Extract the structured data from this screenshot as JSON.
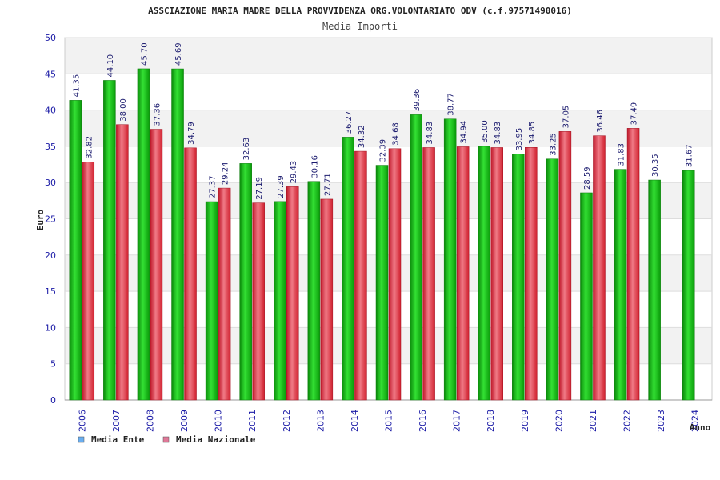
{
  "chart_data": {
    "type": "bar",
    "title": "ASSCIAZIONE MARIA MADRE DELLA PROVVIDENZA ORG.VOLONTARIATO ODV (c.f.97571490016)",
    "subtitle": "Media Importi",
    "xlabel": "Anno",
    "ylabel": "Euro",
    "ylim": [
      0,
      50
    ],
    "yticks": [
      0,
      5,
      10,
      15,
      20,
      25,
      30,
      35,
      40,
      45,
      50
    ],
    "grid": true,
    "legend_position": "bottom-left",
    "categories": [
      "2006",
      "2007",
      "2008",
      "2009",
      "2010",
      "2011",
      "2012",
      "2013",
      "2014",
      "2015",
      "2016",
      "2017",
      "2018",
      "2019",
      "2020",
      "2021",
      "2022",
      "2023",
      "2024"
    ],
    "series": [
      {
        "name": "Media Ente",
        "color": "#10b010",
        "legend_color": "#6aaef0",
        "values": [
          41.35,
          44.1,
          45.7,
          45.69,
          27.37,
          32.63,
          27.39,
          30.16,
          36.27,
          32.39,
          39.36,
          38.77,
          35.0,
          33.95,
          33.25,
          28.59,
          31.83,
          30.35,
          31.67
        ],
        "labels": [
          "41.35",
          "44.10",
          "45.70",
          "45.69",
          "27.37",
          "32.63",
          "27.39",
          "30.16",
          "36.27",
          "32.39",
          "39.36",
          "38.77",
          "35.00",
          "33.95",
          "33.25",
          "28.59",
          "31.83",
          "30.35",
          "31.67"
        ]
      },
      {
        "name": "Media Nazionale",
        "color": "#e02838",
        "legend_color": "#e07898",
        "values": [
          32.82,
          38.0,
          37.36,
          34.79,
          29.24,
          27.19,
          29.43,
          27.71,
          34.32,
          34.68,
          34.83,
          34.94,
          34.83,
          34.85,
          37.05,
          36.46,
          37.49,
          null,
          null
        ],
        "labels": [
          "32.82",
          "38.00",
          "37.36",
          "34.79",
          "29.24",
          "27.19",
          "29.43",
          "27.71",
          "34.32",
          "34.68",
          "34.83",
          "34.94",
          "34.83",
          "34.85",
          "37.05",
          "36.46",
          "37.49",
          "",
          ""
        ]
      }
    ]
  }
}
